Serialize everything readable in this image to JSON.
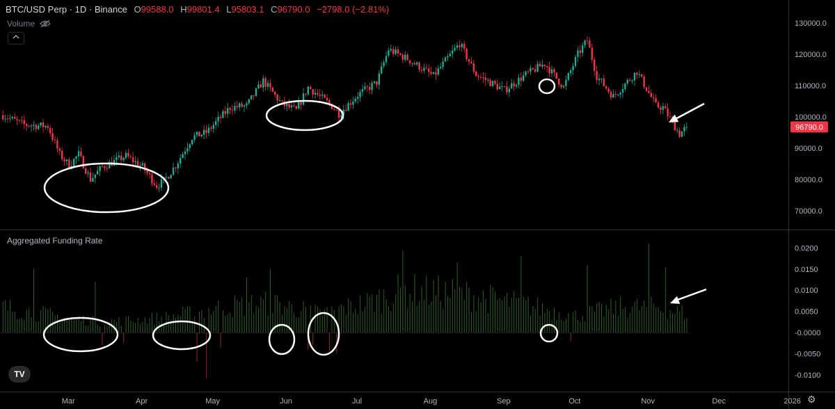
{
  "legend": {
    "symbol": "BTC/USD Perp · 1D · Binance",
    "open_label": "O",
    "open": "99588.0",
    "high_label": "H",
    "high": "99801.4",
    "low_label": "L",
    "low": "95803.1",
    "close_label": "C",
    "close": "96790.0",
    "change": "−2798.0 (−2.81%)",
    "volume_label": "Volume",
    "collapse_icon": "chevron-up-icon",
    "visibility_icon": "eye-off-icon"
  },
  "indicator": {
    "title": "Aggregated Funding Rate"
  },
  "last_price_label": "96790.0",
  "colors": {
    "up": "#22ab94",
    "down": "#f23645",
    "funding_pos": "#2e5d2a",
    "funding_neg": "#8a2a2a",
    "annotation": "#ffffff"
  },
  "icons": {
    "logo": "tradingview-logo-icon",
    "settings": "gear-icon"
  },
  "chart_data": [
    {
      "type": "candlestick",
      "title": "BTC/USD Perp · 1D · Binance",
      "x_ticks": [
        "Mar",
        "Apr",
        "May",
        "Jun",
        "Jul",
        "Aug",
        "Sep",
        "Oct",
        "Nov",
        "Dec",
        "2026"
      ],
      "y_ticks": [
        "130000.0",
        "120000.0",
        "110000.0",
        "100000.0",
        "90000.0",
        "80000.0",
        "70000.0"
      ],
      "ylim": [
        64000,
        133000
      ],
      "last_value": 96790.0,
      "series": [
        {
          "interval": "1D",
          "start": "2025-02-01",
          "close_path": [
            [
              "2025-02-01",
              100500
            ],
            [
              "2025-02-10",
              97500
            ],
            [
              "2025-02-20",
              97000
            ],
            [
              "2025-02-25",
              88000
            ],
            [
              "2025-03-01",
              84500
            ],
            [
              "2025-03-05",
              88000
            ],
            [
              "2025-03-10",
              80000
            ],
            [
              "2025-03-15",
              84000
            ],
            [
              "2025-03-25",
              87500
            ],
            [
              "2025-04-01",
              84000
            ],
            [
              "2025-04-07",
              78000
            ],
            [
              "2025-04-10",
              79500
            ],
            [
              "2025-04-15",
              84500
            ],
            [
              "2025-04-22",
              93500
            ],
            [
              "2025-04-28",
              95000
            ],
            [
              "2025-05-08",
              103000
            ],
            [
              "2025-05-15",
              103500
            ],
            [
              "2025-05-22",
              111500
            ],
            [
              "2025-05-30",
              104000
            ],
            [
              "2025-06-05",
              102000
            ],
            [
              "2025-06-10",
              109500
            ],
            [
              "2025-06-20",
              103500
            ],
            [
              "2025-06-23",
              101000
            ],
            [
              "2025-07-01",
              107000
            ],
            [
              "2025-07-09",
              111000
            ],
            [
              "2025-07-14",
              121500
            ],
            [
              "2025-07-22",
              118500
            ],
            [
              "2025-08-02",
              113000
            ],
            [
              "2025-08-13",
              123500
            ],
            [
              "2025-08-20",
              113500
            ],
            [
              "2025-09-01",
              108500
            ],
            [
              "2025-09-10",
              113500
            ],
            [
              "2025-09-18",
              117000
            ],
            [
              "2025-09-26",
              109500
            ],
            [
              "2025-10-02",
              120000
            ],
            [
              "2025-10-06",
              124500
            ],
            [
              "2025-10-10",
              113000
            ],
            [
              "2025-10-17",
              106500
            ],
            [
              "2025-10-27",
              114500
            ],
            [
              "2025-11-04",
              103500
            ],
            [
              "2025-11-07",
              103000
            ],
            [
              "2025-11-14",
              94500
            ],
            [
              "2025-11-17",
              96790
            ]
          ]
        }
      ]
    },
    {
      "type": "bar",
      "title": "Aggregated Funding Rate",
      "x_ticks": [
        "Mar",
        "Apr",
        "May",
        "Jun",
        "Jul",
        "Aug",
        "Sep",
        "Oct",
        "Nov",
        "Dec",
        "2026"
      ],
      "y_ticks": [
        "0.0200",
        "0.0150",
        "0.0100",
        "0.0050",
        "-0.0000",
        "-0.0050",
        "-0.0100"
      ],
      "ylim": [
        -0.0118,
        0.0225
      ],
      "series": [
        {
          "name": "Aggregated Funding Rate",
          "interval": "1D",
          "level_path": [
            [
              "2025-02-01",
              0.006
            ],
            [
              "2025-02-28",
              0.0035
            ],
            [
              "2025-03-15",
              0.0025
            ],
            [
              "2025-04-10",
              0.0035
            ],
            [
              "2025-05-05",
              0.006
            ],
            [
              "2025-05-25",
              0.007
            ],
            [
              "2025-06-15",
              0.0045
            ],
            [
              "2025-07-05",
              0.007
            ],
            [
              "2025-07-20",
              0.01
            ],
            [
              "2025-08-15",
              0.009
            ],
            [
              "2025-09-10",
              0.0065
            ],
            [
              "2025-10-01",
              0.004
            ],
            [
              "2025-10-20",
              0.006
            ],
            [
              "2025-11-05",
              0.006
            ],
            [
              "2025-11-17",
              0.0045
            ]
          ],
          "spikes": [
            [
              "2025-02-14",
              0.015
            ],
            [
              "2025-03-12",
              0.012
            ],
            [
              "2025-05-15",
              0.013
            ],
            [
              "2025-05-25",
              0.015
            ],
            [
              "2025-07-20",
              0.0195
            ],
            [
              "2025-08-12",
              0.0165
            ],
            [
              "2025-09-08",
              0.018
            ],
            [
              "2025-10-06",
              0.016
            ],
            [
              "2025-11-01",
              0.021
            ],
            [
              "2025-11-08",
              0.0155
            ]
          ],
          "negatives": [
            [
              "2025-03-15",
              -0.003
            ],
            [
              "2025-03-24",
              -0.0025
            ],
            [
              "2025-04-24",
              -0.007
            ],
            [
              "2025-04-28",
              -0.0108
            ],
            [
              "2025-05-04",
              -0.0035
            ],
            [
              "2025-06-10",
              -0.004
            ],
            [
              "2025-06-12",
              -0.003
            ],
            [
              "2025-06-19",
              -0.0045
            ],
            [
              "2025-06-22",
              -0.005
            ],
            [
              "2025-09-29",
              -0.002
            ]
          ]
        }
      ]
    }
  ]
}
